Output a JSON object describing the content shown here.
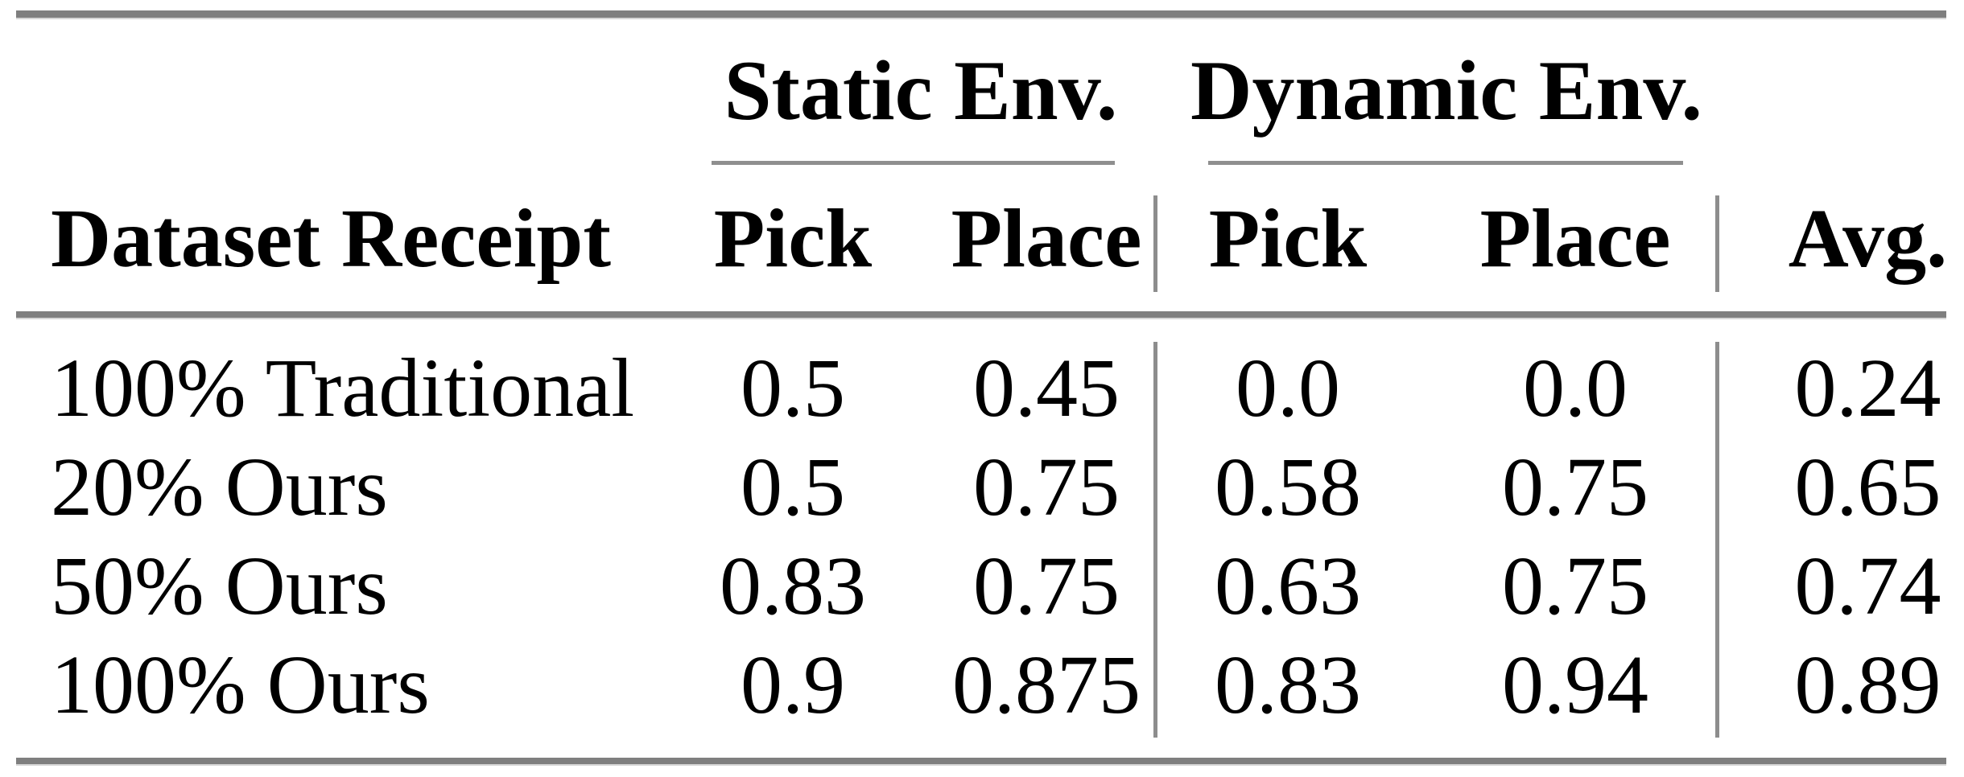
{
  "table": {
    "group_headers": {
      "static": "Static Env.",
      "dynamic": "Dynamic Env."
    },
    "column_headers": {
      "dataset": "Dataset Receipt",
      "static_pick": "Pick",
      "static_place": "Place",
      "dynamic_pick": "Pick",
      "dynamic_place": "Place",
      "avg": "Avg."
    },
    "rows": [
      {
        "dataset": "100% Traditional",
        "static_pick": "0.5",
        "static_place": "0.45",
        "dynamic_pick": "0.0",
        "dynamic_place": "0.0",
        "avg": "0.24"
      },
      {
        "dataset": "20% Ours",
        "static_pick": "0.5",
        "static_place": "0.75",
        "dynamic_pick": "0.58",
        "dynamic_place": "0.75",
        "avg": "0.65"
      },
      {
        "dataset": "50% Ours",
        "static_pick": "0.83",
        "static_place": "0.75",
        "dynamic_pick": "0.63",
        "dynamic_place": "0.75",
        "avg": "0.74"
      },
      {
        "dataset": "100% Ours",
        "static_pick": "0.9",
        "static_place": "0.875",
        "dynamic_pick": "0.83",
        "dynamic_place": "0.94",
        "avg": "0.89"
      }
    ]
  },
  "chart_data": {
    "type": "table",
    "columns": [
      "Dataset Receipt",
      "Static Env. Pick",
      "Static Env. Place",
      "Dynamic Env. Pick",
      "Dynamic Env. Place",
      "Avg."
    ],
    "rows": [
      [
        "100% Traditional",
        0.5,
        0.45,
        0.0,
        0.0,
        0.24
      ],
      [
        "20% Ours",
        0.5,
        0.75,
        0.58,
        0.75,
        0.65
      ],
      [
        "50% Ours",
        0.83,
        0.75,
        0.63,
        0.75,
        0.74
      ],
      [
        "100% Ours",
        0.9,
        0.875,
        0.83,
        0.94,
        0.89
      ]
    ]
  },
  "colors": {
    "rule_thick": "#7f7f7f",
    "rule_thin": "#8f8f8f",
    "text": "#000000",
    "background": "#ffffff"
  }
}
